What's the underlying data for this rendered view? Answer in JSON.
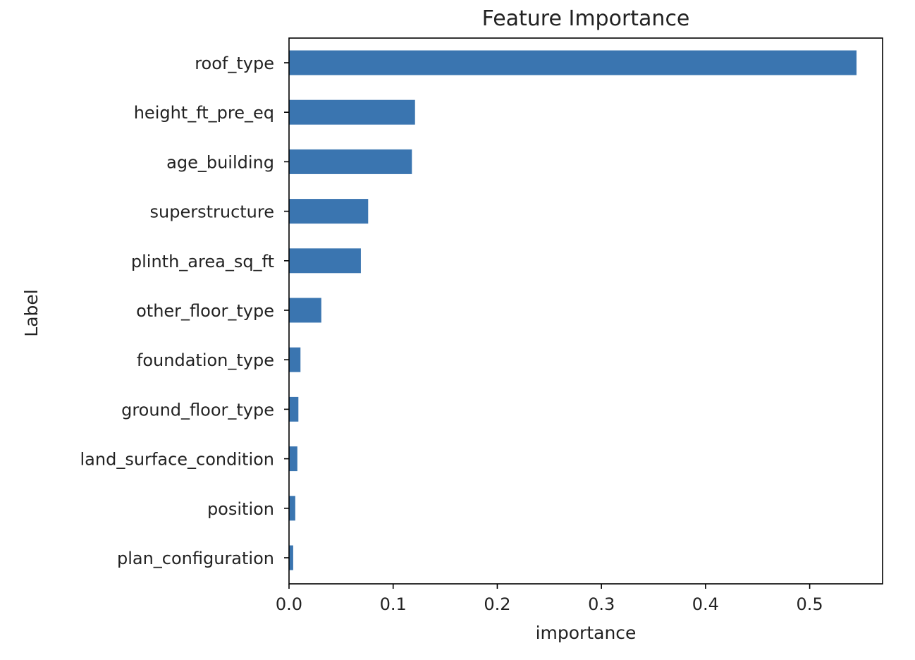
{
  "chart_data": {
    "type": "bar",
    "orientation": "horizontal",
    "title": "Feature Importance",
    "xlabel": "importance",
    "ylabel": "Label",
    "xlim": [
      0,
      0.57
    ],
    "x_ticks": [
      "0.0",
      "0.1",
      "0.2",
      "0.3",
      "0.4",
      "0.5"
    ],
    "grid": false,
    "legend": "none",
    "bar_color": "#3a75b0",
    "categories": [
      "roof_type",
      "height_ft_pre_eq",
      "age_building",
      "superstructure",
      "plinth_area_sq_ft",
      "other_floor_type",
      "foundation_type",
      "ground_floor_type",
      "land_surface_condition",
      "position",
      "plan_configuration"
    ],
    "values": [
      0.545,
      0.121,
      0.118,
      0.076,
      0.069,
      0.031,
      0.011,
      0.009,
      0.008,
      0.006,
      0.004
    ]
  }
}
